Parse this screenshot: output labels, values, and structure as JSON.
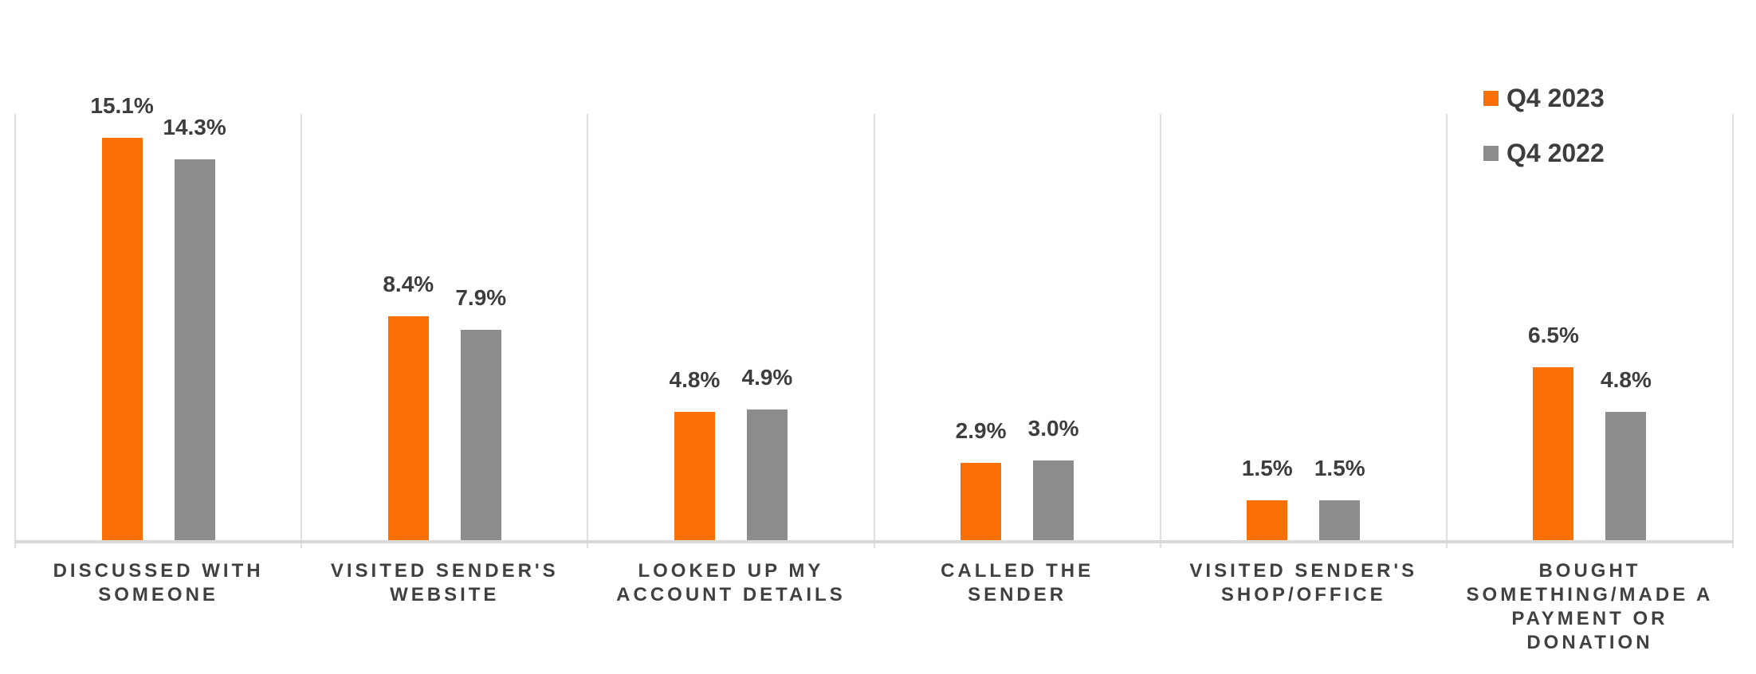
{
  "chart_data": {
    "type": "bar",
    "title": "",
    "xlabel": "",
    "ylabel": "",
    "value_suffix": "%",
    "ylim": [
      0,
      16
    ],
    "grid": "vertical-category-separators-only",
    "legend_position": "top-right",
    "categories": [
      "DISCUSSED WITH\nSOMEONE",
      "VISITED SENDER'S\nWEBSITE",
      "LOOKED UP MY\nACCOUNT DETAILS",
      "CALLED THE\nSENDER",
      "VISITED SENDER'S\nSHOP/OFFICE",
      "BOUGHT\nSOMETHING/MADE A\nPAYMENT OR\nDONATION"
    ],
    "series": [
      {
        "name": "Q4 2023",
        "color": "#FA7005",
        "values": [
          15.1,
          8.4,
          4.8,
          2.9,
          1.5,
          6.5
        ],
        "labels": [
          "15.1%",
          "8.4%",
          "4.8%",
          "2.9%",
          "1.5%",
          "6.5%"
        ]
      },
      {
        "name": "Q4 2022",
        "color": "#8C8C8C",
        "values": [
          14.3,
          7.9,
          4.9,
          3.0,
          1.5,
          4.8
        ],
        "labels": [
          "14.3%",
          "7.9%",
          "4.9%",
          "3.0%",
          "1.5%",
          "4.8%"
        ]
      }
    ]
  }
}
